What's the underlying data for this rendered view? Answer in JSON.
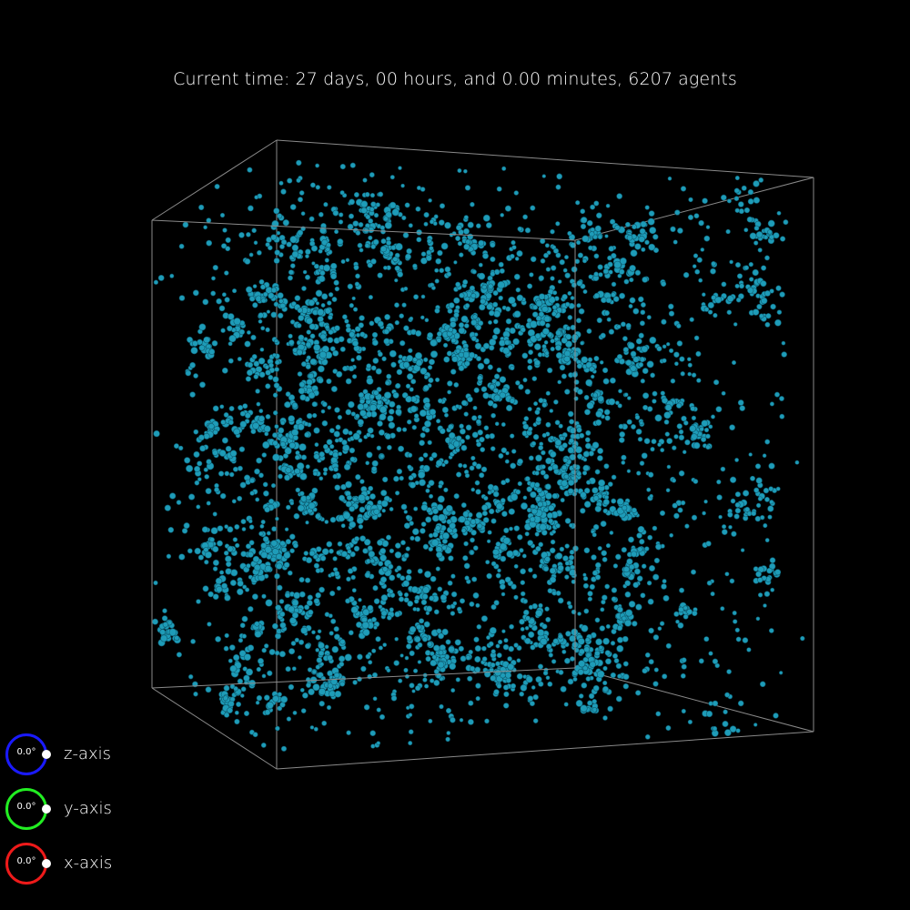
{
  "status": {
    "text": "Current time: 27 days, 00 hours, and 0.00 minutes, 6207 agents"
  },
  "colors": {
    "background": "#000000",
    "agent_fill": "#1e9cb8",
    "agent_edge": "#0e5a6e",
    "box_edge": "#8a8a8a",
    "z_ring": "#1a1aff",
    "y_ring": "#22ee22",
    "x_ring": "#ee1a1a"
  },
  "axis_controls": [
    {
      "id": "z",
      "label": "z-axis",
      "angle": "0.0°",
      "color": "#1a1aff"
    },
    {
      "id": "y",
      "label": "y-axis",
      "angle": "0.0°",
      "color": "#22ee22"
    },
    {
      "id": "x",
      "label": "x-axis",
      "angle": "0.0°",
      "color": "#ee1a1a"
    }
  ]
}
